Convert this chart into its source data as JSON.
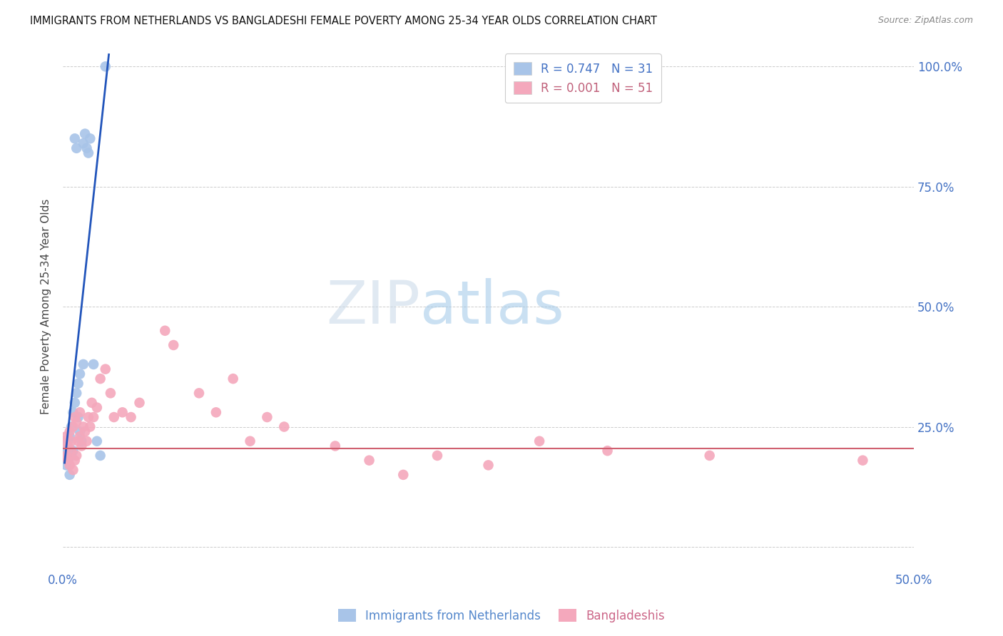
{
  "title": "IMMIGRANTS FROM NETHERLANDS VS BANGLADESHI FEMALE POVERTY AMONG 25-34 YEAR OLDS CORRELATION CHART",
  "source": "Source: ZipAtlas.com",
  "ylabel": "Female Poverty Among 25-34 Year Olds",
  "xlim": [
    0.0,
    0.5
  ],
  "ylim": [
    -0.05,
    1.05
  ],
  "watermark_zip": "ZIP",
  "watermark_atlas": "atlas",
  "legend_blue_label": "R = 0.747   N = 31",
  "legend_pink_label": "R = 0.001   N = 51",
  "legend_blue_text_color": "#4472c4",
  "legend_pink_text_color": "#c0607a",
  "scatter_blue_color": "#a8c4e8",
  "scatter_pink_color": "#f4a8bc",
  "line_blue_color": "#2255bb",
  "line_pink_color": "#d06070",
  "background_color": "#ffffff",
  "grid_color": "#cccccc",
  "bottom_label_blue": "Immigrants from Netherlands",
  "bottom_label_pink": "Bangladeshis",
  "bottom_blue_color": "#5588cc",
  "bottom_pink_color": "#cc6688",
  "nl_x": [
    0.001,
    0.002,
    0.002,
    0.003,
    0.003,
    0.003,
    0.004,
    0.004,
    0.005,
    0.005,
    0.006,
    0.006,
    0.007,
    0.007,
    0.008,
    0.008,
    0.009,
    0.009,
    0.01,
    0.01,
    0.011,
    0.012,
    0.012,
    0.013,
    0.014,
    0.015,
    0.016,
    0.018,
    0.02,
    0.022,
    0.025
  ],
  "nl_y": [
    0.19,
    0.17,
    0.21,
    0.18,
    0.2,
    0.22,
    0.15,
    0.23,
    0.19,
    0.25,
    0.2,
    0.28,
    0.3,
    0.85,
    0.32,
    0.83,
    0.34,
    0.27,
    0.36,
    0.24,
    0.22,
    0.84,
    0.38,
    0.86,
    0.83,
    0.82,
    0.85,
    0.38,
    0.22,
    0.19,
    1.0
  ],
  "bd_x": [
    0.001,
    0.002,
    0.002,
    0.003,
    0.003,
    0.004,
    0.004,
    0.005,
    0.005,
    0.006,
    0.006,
    0.007,
    0.007,
    0.008,
    0.008,
    0.009,
    0.01,
    0.01,
    0.011,
    0.012,
    0.013,
    0.014,
    0.015,
    0.016,
    0.017,
    0.018,
    0.02,
    0.022,
    0.025,
    0.028,
    0.03,
    0.035,
    0.04,
    0.045,
    0.06,
    0.065,
    0.08,
    0.09,
    0.1,
    0.11,
    0.12,
    0.13,
    0.16,
    0.18,
    0.2,
    0.22,
    0.25,
    0.28,
    0.32,
    0.38,
    0.47
  ],
  "bd_y": [
    0.22,
    0.19,
    0.23,
    0.18,
    0.21,
    0.17,
    0.24,
    0.2,
    0.22,
    0.16,
    0.25,
    0.18,
    0.27,
    0.19,
    0.26,
    0.22,
    0.23,
    0.28,
    0.21,
    0.25,
    0.24,
    0.22,
    0.27,
    0.25,
    0.3,
    0.27,
    0.29,
    0.35,
    0.37,
    0.32,
    0.27,
    0.28,
    0.27,
    0.3,
    0.45,
    0.42,
    0.32,
    0.28,
    0.35,
    0.22,
    0.27,
    0.25,
    0.21,
    0.18,
    0.15,
    0.19,
    0.17,
    0.22,
    0.2,
    0.19,
    0.18
  ],
  "blue_line_x1": 0.001,
  "blue_line_y1": 0.175,
  "blue_line_x2": 0.027,
  "blue_line_y2": 1.025,
  "pink_line_y": 0.205
}
